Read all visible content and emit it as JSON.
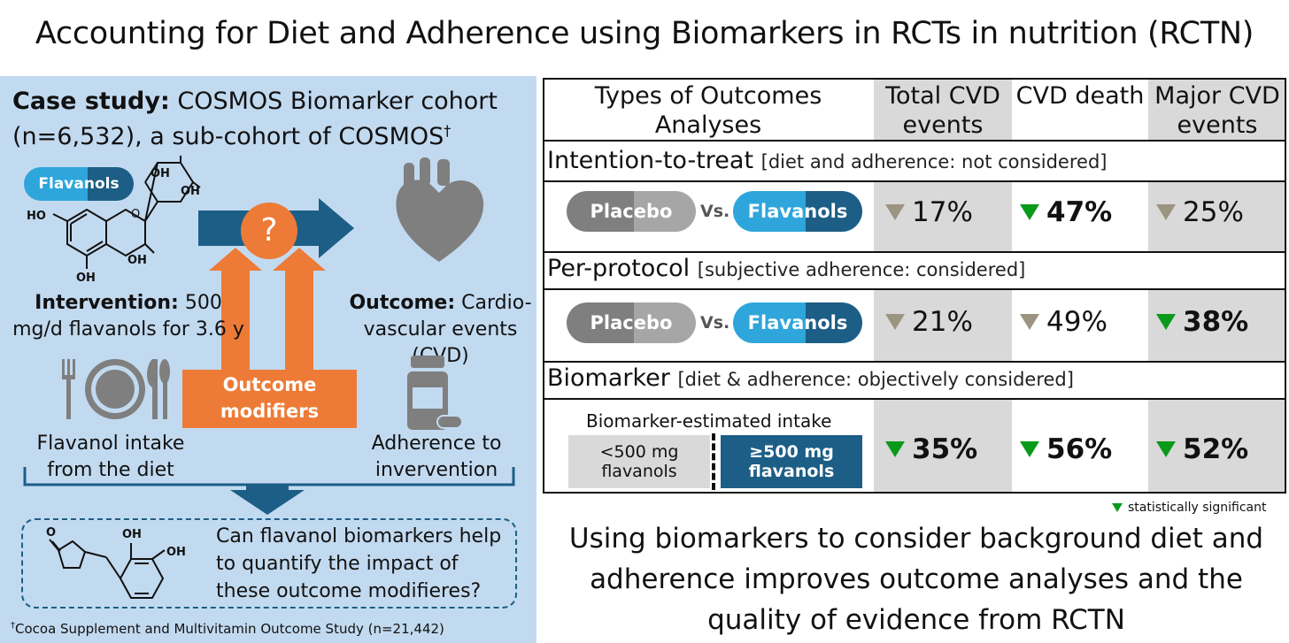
{
  "title": "Accounting for Diet and Adherence using Biomarkers in RCTs in nutrition (RCTN)",
  "left": {
    "case_label": "Case study:",
    "case_text": "COSMOS Biomarker cohort (n=6,532), a sub-cohort of COSMOS",
    "case_dagger": "†",
    "flavanols_pill": "Flavanols",
    "intervention_label": "Intervention:",
    "intervention_text": "500 mg/d flavanols for 3.6 y",
    "outcome_label": "Outcome:",
    "outcome_text": "Cardio-vascular events (CVD)",
    "question": "?",
    "modifiers": "Outcome modifiers",
    "diet": "Flavanol intake from the diet",
    "adherence": "Adherence to invervention",
    "question_box": "Can flavanol biomarkers help to quantify the impact of these outcome modifieres?",
    "chem_labels": {
      "oh1": "OH",
      "oh2": "OH",
      "oh3": "HO",
      "oh4": "OH",
      "oh5": "OH",
      "o_ring": "O",
      "oh6": "OH",
      "oh7": "OH",
      "o_lactone": "O"
    },
    "footnote_dagger": "†",
    "footnote": "Cocoa Supplement and Multivitamin Outcome Study (n=21,442)"
  },
  "table": {
    "header": "Types of Outcomes Analyses",
    "columns": [
      "Total CVD events",
      "CVD death",
      "Major CVD events"
    ],
    "rows": [
      {
        "name": "Intention-to-treat",
        "note": "[diet and adherence: not considered]",
        "placebo": "Placebo",
        "vs": "Vs.",
        "flavanols": "Flavanols",
        "values": [
          "17%",
          "47%",
          "25%"
        ],
        "significant": [
          false,
          true,
          false
        ]
      },
      {
        "name": "Per-protocol",
        "note": "[subjective adherence: considered]",
        "placebo": "Placebo",
        "vs": "Vs.",
        "flavanols": "Flavanols",
        "values": [
          "21%",
          "49%",
          "38%"
        ],
        "significant": [
          false,
          false,
          true
        ]
      },
      {
        "name": "Biomarker",
        "note": "[diet & adherence: objectively considered]",
        "estimated": "Biomarker-estimated intake",
        "low": "<500 mg flavanols",
        "high": "≥500 mg flavanols",
        "values": [
          "35%",
          "56%",
          "52%"
        ],
        "significant": [
          true,
          true,
          true
        ]
      }
    ]
  },
  "legend": "statistically significant",
  "conclusion": "Using biomarkers to consider background diet and adherence improves outcome analyses and the quality of evidence from RCTN",
  "colors": {
    "panel": "#c2daf0",
    "dark_blue": "#1c5e86",
    "light_blue": "#2ea6dc",
    "orange": "#ed7b37",
    "gray_col": "#d9d9d9",
    "sig_green": "#0a9a1a",
    "ns_gray": "#9a9480"
  },
  "icons": [
    "heart-icon",
    "plate-icon",
    "fork-icon",
    "knife-icon",
    "spoon-icon",
    "pill-bottle-icon",
    "arrow-right-icon",
    "arrow-down-icon",
    "triangle-down-icon"
  ]
}
